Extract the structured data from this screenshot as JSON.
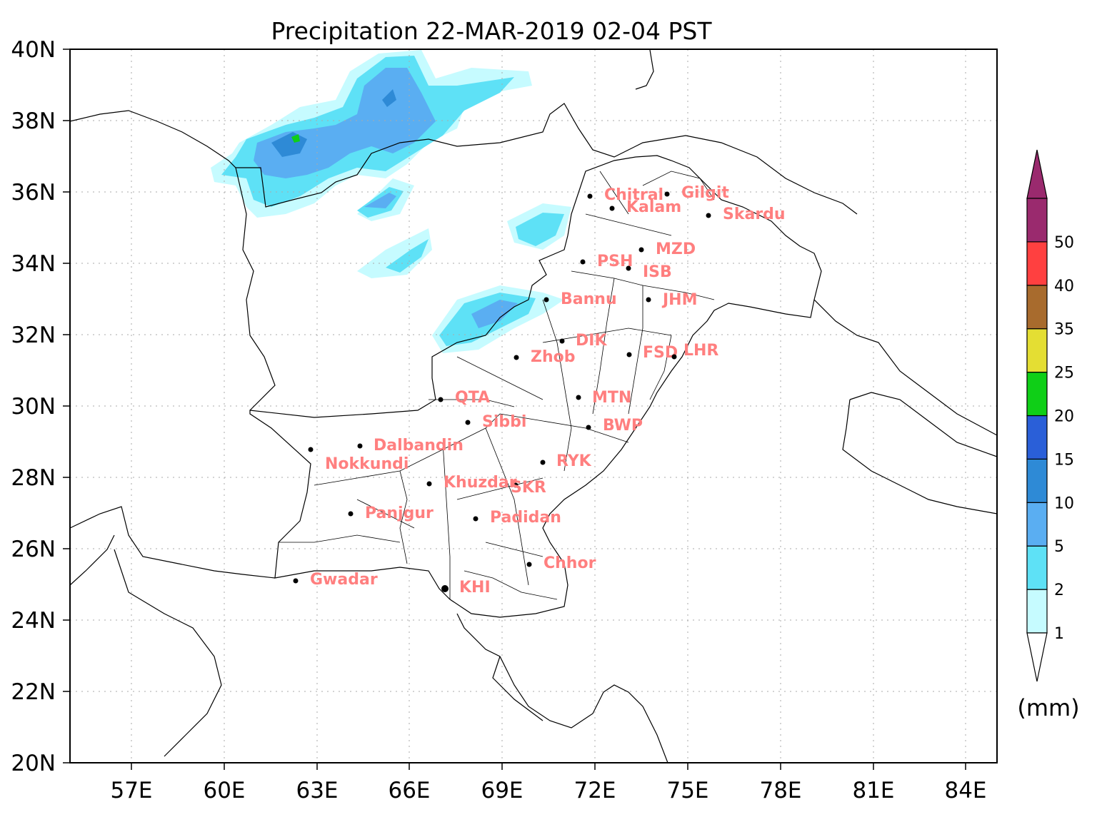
{
  "title": "Precipitation 22-MAR-2019 02-04 PST",
  "y_ticks": [
    "40N",
    "38N",
    "36N",
    "34N",
    "32N",
    "30N",
    "28N",
    "26N",
    "24N",
    "22N",
    "20N"
  ],
  "x_ticks": [
    "57E",
    "60E",
    "63E",
    "66E",
    "69E",
    "72E",
    "75E",
    "78E",
    "81E",
    "84E"
  ],
  "colorbar": {
    "unit": "(mm)",
    "levels": [
      "1",
      "2",
      "5",
      "10",
      "15",
      "20",
      "25",
      "35",
      "40",
      "50"
    ],
    "colors": [
      "#c6fbff",
      "#5ee1f6",
      "#5aaef2",
      "#2e8ad6",
      "#2a5fd8",
      "#0fcf17",
      "#e4de33",
      "#a86b2d",
      "#ff4040",
      "#9a2a6e"
    ],
    "under_color": "#ffffff",
    "over_color": "#9a2a6e"
  },
  "stations": [
    {
      "name": "Chitral"
    },
    {
      "name": "Gilgit"
    },
    {
      "name": "Kalam"
    },
    {
      "name": "Skardu"
    },
    {
      "name": "MZD"
    },
    {
      "name": "PSH"
    },
    {
      "name": "ISB"
    },
    {
      "name": "Bannu"
    },
    {
      "name": "JHM"
    },
    {
      "name": "DIK"
    },
    {
      "name": "FSD"
    },
    {
      "name": "LHR"
    },
    {
      "name": "Zhob"
    },
    {
      "name": "QTA"
    },
    {
      "name": "MTN"
    },
    {
      "name": "Sibbi"
    },
    {
      "name": "BWP"
    },
    {
      "name": "Dalbandin"
    },
    {
      "name": "Nokkundi"
    },
    {
      "name": "RYK"
    },
    {
      "name": "Khuzdar"
    },
    {
      "name": "SKR"
    },
    {
      "name": "Panjgur"
    },
    {
      "name": "Padidan"
    },
    {
      "name": "Chhor"
    },
    {
      "name": "Gwadar"
    },
    {
      "name": "KHI"
    }
  ]
}
